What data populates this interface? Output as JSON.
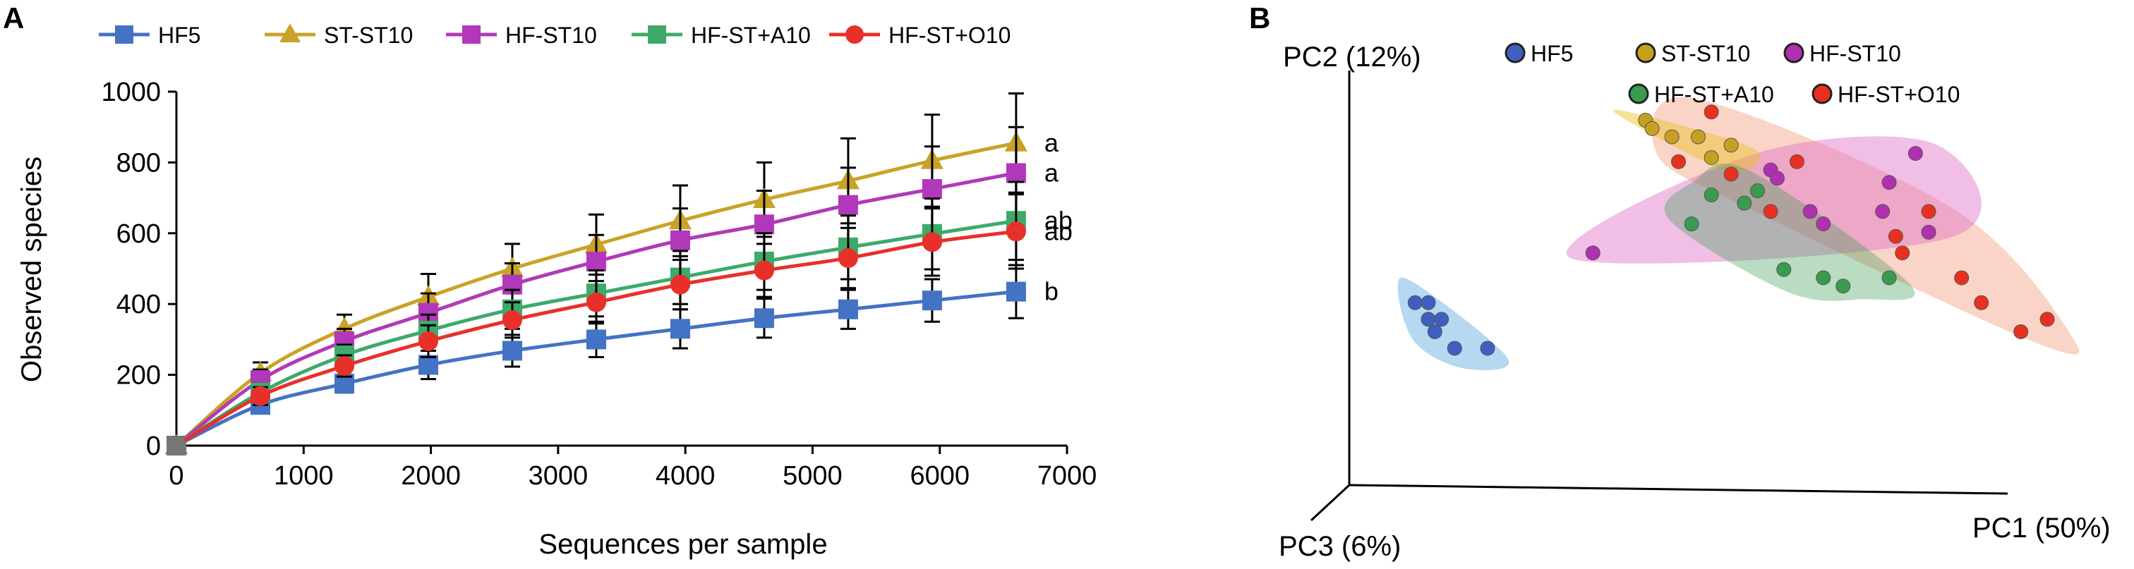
{
  "panels": {
    "a": "A",
    "b": "B"
  },
  "chart_data": [
    {
      "type": "line",
      "xlabel": "Sequences per sample",
      "ylabel": "Observed species",
      "xlim": [
        0,
        7000
      ],
      "ylim": [
        0,
        1000
      ],
      "xticks": [
        0,
        1000,
        2000,
        3000,
        4000,
        5000,
        6000,
        7000
      ],
      "yticks": [
        0,
        200,
        400,
        600,
        800,
        1000
      ],
      "x": [
        0,
        660,
        1320,
        1980,
        2640,
        3300,
        3960,
        4620,
        5280,
        5940,
        6600
      ],
      "legend_position": "top",
      "series": [
        {
          "name": "HF5",
          "color": "#4472C4",
          "marker": "square",
          "values": [
            0,
            115,
            175,
            228,
            268,
            300,
            330,
            360,
            385,
            410,
            435
          ],
          "errors": [
            0,
            20,
            25,
            40,
            45,
            50,
            55,
            55,
            55,
            60,
            75
          ],
          "significance": "b"
        },
        {
          "name": "ST-ST10",
          "color": "#C9A227",
          "marker": "triangle",
          "values": [
            0,
            205,
            330,
            420,
            500,
            568,
            635,
            695,
            748,
            805,
            855
          ],
          "errors": [
            0,
            30,
            40,
            65,
            70,
            85,
            100,
            105,
            120,
            130,
            140
          ],
          "significance": "a"
        },
        {
          "name": "HF-ST10",
          "color": "#B138B8",
          "marker": "square",
          "values": [
            0,
            185,
            295,
            375,
            455,
            520,
            580,
            625,
            680,
            725,
            770
          ],
          "errors": [
            0,
            30,
            35,
            55,
            60,
            75,
            90,
            95,
            105,
            120,
            130
          ],
          "significance": "a"
        },
        {
          "name": "HF-ST+A10",
          "color": "#3DAA6A",
          "marker": "square",
          "values": [
            0,
            150,
            255,
            325,
            385,
            430,
            475,
            520,
            560,
            598,
            635
          ],
          "errors": [
            0,
            25,
            30,
            45,
            55,
            65,
            75,
            80,
            90,
            100,
            110
          ],
          "significance": "ab"
        },
        {
          "name": "HF-ST+O10",
          "color": "#E8302A",
          "marker": "circle",
          "values": [
            0,
            140,
            225,
            295,
            355,
            405,
            455,
            495,
            530,
            575,
            605
          ],
          "errors": [
            0,
            25,
            30,
            45,
            50,
            60,
            70,
            75,
            85,
            95,
            105
          ],
          "significance": "ab"
        }
      ]
    },
    {
      "type": "scatter",
      "subtype": "pcoa-3d",
      "axes": {
        "pc1": "PC1 (50%)",
        "pc2": "PC2 (12%)",
        "pc3": "PC3 (6%)"
      },
      "legend_position": "top",
      "groups": [
        {
          "name": "HF5",
          "color": "#3F5FC0",
          "hull": "#5DA8E0",
          "points": [
            [
              0.1,
              0.44
            ],
            [
              0.12,
              0.4
            ],
            [
              0.13,
              0.37
            ],
            [
              0.14,
              0.4
            ],
            [
              0.12,
              0.44
            ],
            [
              0.16,
              0.33
            ],
            [
              0.21,
              0.33
            ]
          ]
        },
        {
          "name": "ST-ST10",
          "color": "#C8A020",
          "hull": "#E8C020",
          "points": [
            [
              0.45,
              0.88
            ],
            [
              0.46,
              0.86
            ],
            [
              0.49,
              0.84
            ],
            [
              0.53,
              0.84
            ],
            [
              0.55,
              0.79
            ],
            [
              0.58,
              0.82
            ]
          ]
        },
        {
          "name": "HF-ST10",
          "color": "#B030B0",
          "hull": "#E070C8",
          "points": [
            [
              0.37,
              0.56
            ],
            [
              0.64,
              0.76
            ],
            [
              0.65,
              0.74
            ],
            [
              0.7,
              0.66
            ],
            [
              0.72,
              0.63
            ],
            [
              0.81,
              0.66
            ],
            [
              0.82,
              0.73
            ],
            [
              0.86,
              0.8
            ],
            [
              0.88,
              0.61
            ]
          ]
        },
        {
          "name": "HF-ST+A10",
          "color": "#3A9A50",
          "hull": "#3A9A50",
          "points": [
            [
              0.52,
              0.63
            ],
            [
              0.55,
              0.7
            ],
            [
              0.6,
              0.68
            ],
            [
              0.62,
              0.71
            ],
            [
              0.66,
              0.52
            ],
            [
              0.72,
              0.5
            ],
            [
              0.75,
              0.48
            ],
            [
              0.82,
              0.5
            ]
          ]
        },
        {
          "name": "HF-ST+O10",
          "color": "#E83020",
          "hull": "#F4A080",
          "points": [
            [
              0.5,
              0.78
            ],
            [
              0.55,
              0.9
            ],
            [
              0.58,
              0.75
            ],
            [
              0.64,
              0.66
            ],
            [
              0.68,
              0.78
            ],
            [
              0.83,
              0.6
            ],
            [
              0.84,
              0.56
            ],
            [
              0.93,
              0.5
            ],
            [
              0.96,
              0.44
            ],
            [
              1.02,
              0.37
            ],
            [
              1.06,
              0.4
            ],
            [
              0.88,
              0.66
            ]
          ]
        }
      ]
    }
  ]
}
